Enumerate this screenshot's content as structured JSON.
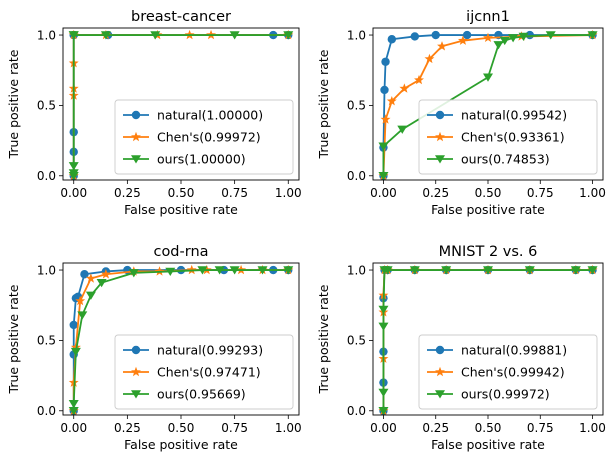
{
  "colors": {
    "natural": "#1f77b4",
    "chens": "#ff7f0e",
    "ours": "#2ca02c"
  },
  "chart_data": [
    {
      "type": "line",
      "title": "breast-cancer",
      "xlabel": "False positive rate",
      "ylabel": "True positive rate",
      "xlim": [
        -0.05,
        1.05
      ],
      "ylim": [
        -0.03,
        1.05
      ],
      "xticks": [
        "0.00",
        "0.25",
        "0.50",
        "0.75",
        "1.00"
      ],
      "yticks": [
        "0.0",
        "0.5",
        "1.0"
      ],
      "legend_loc": "lower-right",
      "series": [
        {
          "name": "natural(1.00000)",
          "marker": "circle",
          "x": [
            0,
            0,
            0,
            0,
            0,
            0.16,
            0.93,
            1.0
          ],
          "y": [
            0,
            0.17,
            0.31,
            1.0,
            1.0,
            1.0,
            1.0,
            1.0
          ]
        },
        {
          "name": "Chen's(0.99972)",
          "marker": "star",
          "x": [
            0,
            0,
            0,
            0,
            0,
            0.15,
            0.39,
            0.54,
            0.64,
            1.0
          ],
          "y": [
            0,
            0.57,
            0.62,
            0.8,
            1.0,
            1.0,
            1.0,
            1.0,
            1.0,
            1.0
          ]
        },
        {
          "name": "ours(1.00000)",
          "marker": "triangle-down",
          "x": [
            0,
            0,
            0,
            0,
            0,
            0.15,
            0.38,
            0.75,
            1.0
          ],
          "y": [
            0,
            0.02,
            0.07,
            1.0,
            1.0,
            1.0,
            1.0,
            1.0,
            1.0
          ]
        }
      ]
    },
    {
      "type": "line",
      "title": "ijcnn1",
      "xlabel": "False positive rate",
      "ylabel": "True positive rate",
      "xlim": [
        -0.05,
        1.05
      ],
      "ylim": [
        -0.03,
        1.05
      ],
      "xticks": [
        "0.00",
        "0.25",
        "0.50",
        "0.75",
        "1.00"
      ],
      "yticks": [
        "0.0",
        "0.5",
        "1.0"
      ],
      "legend_loc": "lower-right",
      "series": [
        {
          "name": "natural(0.99542)",
          "marker": "circle",
          "x": [
            0,
            0,
            0.005,
            0.01,
            0.04,
            0.15,
            0.25,
            0.4,
            0.55,
            0.7,
            1.0
          ],
          "y": [
            0,
            0.2,
            0.61,
            0.81,
            0.97,
            0.99,
            1.0,
            1.0,
            1.0,
            1.0,
            1.0
          ]
        },
        {
          "name": "Chen's(0.93361)",
          "marker": "star",
          "x": [
            0,
            0.01,
            0.04,
            0.1,
            0.17,
            0.22,
            0.28,
            0.38,
            0.5,
            0.66,
            1.0
          ],
          "y": [
            0,
            0.4,
            0.53,
            0.62,
            0.68,
            0.83,
            0.92,
            0.96,
            0.98,
            0.99,
            1.0
          ]
        },
        {
          "name": "ours(0.74853)",
          "marker": "triangle-down",
          "x": [
            0,
            0,
            0.09,
            0.5,
            0.55,
            0.58,
            0.62,
            0.67,
            0.8,
            1.0
          ],
          "y": [
            0,
            0.21,
            0.33,
            0.7,
            0.93,
            0.96,
            0.98,
            0.99,
            1.0,
            1.0
          ]
        }
      ]
    },
    {
      "type": "line",
      "title": "cod-rna",
      "xlabel": "False positive rate",
      "ylabel": "True positive rate",
      "xlim": [
        -0.05,
        1.05
      ],
      "ylim": [
        -0.03,
        1.05
      ],
      "xticks": [
        "0.00",
        "0.25",
        "0.50",
        "0.75",
        "1.00"
      ],
      "yticks": [
        "0.0",
        "0.5",
        "1.0"
      ],
      "legend_loc": "lower-right",
      "series": [
        {
          "name": "natural(0.99293)",
          "marker": "circle",
          "x": [
            0,
            0,
            0,
            0.01,
            0.02,
            0.05,
            0.15,
            0.25,
            0.5,
            0.7,
            0.93,
            1.0
          ],
          "y": [
            0,
            0.4,
            0.61,
            0.8,
            0.81,
            0.97,
            0.99,
            1.0,
            1.0,
            1.0,
            1.0,
            1.0
          ]
        },
        {
          "name": "Chen's(0.97471)",
          "marker": "star",
          "x": [
            0,
            0,
            0.01,
            0.03,
            0.08,
            0.15,
            0.28,
            0.4,
            0.55,
            0.62,
            0.78,
            0.88,
            1.0
          ],
          "y": [
            0,
            0.2,
            0.45,
            0.78,
            0.94,
            0.97,
            0.99,
            0.99,
            1.0,
            1.0,
            1.0,
            1.0,
            1.0
          ]
        },
        {
          "name": "ours(0.95669)",
          "marker": "triangle-down",
          "x": [
            0,
            0,
            0.01,
            0.04,
            0.08,
            0.13,
            0.28,
            0.45,
            0.6,
            0.68,
            0.75,
            0.88,
            1.0
          ],
          "y": [
            0,
            0.05,
            0.42,
            0.68,
            0.82,
            0.91,
            0.98,
            0.99,
            1.0,
            1.0,
            1.0,
            1.0,
            1.0
          ]
        }
      ]
    },
    {
      "type": "line",
      "title": "MNIST 2 vs. 6",
      "xlabel": "False positive rate",
      "ylabel": "True positive rate",
      "xlim": [
        -0.05,
        1.05
      ],
      "ylim": [
        -0.03,
        1.05
      ],
      "xticks": [
        "0.00",
        "0.25",
        "0.50",
        "0.75",
        "1.00"
      ],
      "yticks": [
        "0.0",
        "0.5",
        "1.0"
      ],
      "legend_loc": "lower-right",
      "series": [
        {
          "name": "natural(0.99881)",
          "marker": "circle",
          "x": [
            0,
            0,
            0,
            0,
            0.005,
            0.02,
            0.15,
            0.3,
            0.5,
            0.7,
            0.92,
            1.0
          ],
          "y": [
            0,
            0.2,
            0.42,
            0.8,
            1.0,
            1.0,
            1.0,
            1.0,
            1.0,
            1.0,
            1.0,
            1.0
          ]
        },
        {
          "name": "Chen's(0.99942)",
          "marker": "star",
          "x": [
            0,
            0,
            0,
            0,
            0.005,
            0.02,
            0.15,
            0.3,
            0.5,
            0.7,
            0.92,
            1.0
          ],
          "y": [
            0,
            0.37,
            0.7,
            0.82,
            1.0,
            1.0,
            1.0,
            1.0,
            1.0,
            1.0,
            1.0,
            1.0
          ]
        },
        {
          "name": "ours(0.99972)",
          "marker": "triangle-down",
          "x": [
            0,
            0,
            0,
            0,
            0.005,
            0.02,
            0.15,
            0.3,
            0.5,
            0.7,
            0.92,
            1.0
          ],
          "y": [
            0,
            0.13,
            0.6,
            0.72,
            1.0,
            1.0,
            1.0,
            1.0,
            1.0,
            1.0,
            1.0,
            1.0
          ]
        }
      ]
    }
  ]
}
